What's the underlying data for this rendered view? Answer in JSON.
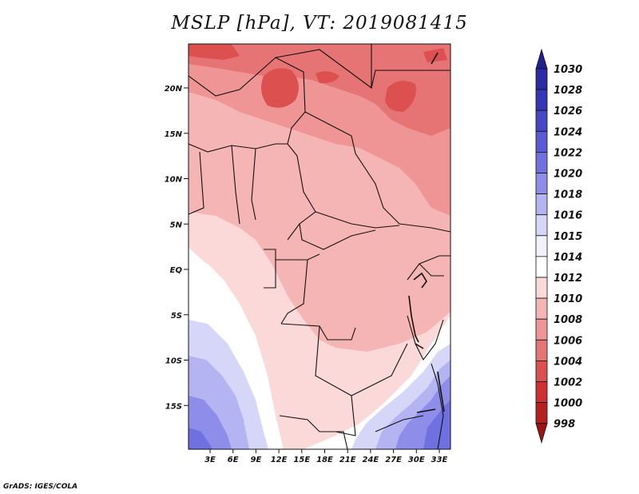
{
  "title": "MSLP [hPa], VT: 2019081415",
  "footer": "GrADS: IGES/COLA",
  "map": {
    "lat_ticks": [
      "20N",
      "15N",
      "10N",
      "5N",
      "EQ",
      "5S",
      "10S",
      "15S"
    ],
    "lon_ticks": [
      "3E",
      "6E",
      "9E",
      "12E",
      "15E",
      "18E",
      "21E",
      "24E",
      "27E",
      "30E",
      "33E"
    ]
  },
  "colorbar": {
    "levels": [
      "1030",
      "1028",
      "1026",
      "1024",
      "1022",
      "1020",
      "1018",
      "1016",
      "1015",
      "1014",
      "1012",
      "1010",
      "1008",
      "1006",
      "1004",
      "1002",
      "1000",
      "998"
    ],
    "colors": [
      "#202090",
      "#2b2ba8",
      "#3636b8",
      "#4646c8",
      "#5a5ad6",
      "#7070e0",
      "#8e8eea",
      "#b4b4f2",
      "#d6d6f8",
      "#f2f2fc",
      "#ffffff",
      "#fcd9d9",
      "#f6b5b5",
      "#ef9595",
      "#e77474",
      "#dd5050",
      "#cf3030",
      "#b81f1f",
      "#9a1414"
    ]
  }
}
